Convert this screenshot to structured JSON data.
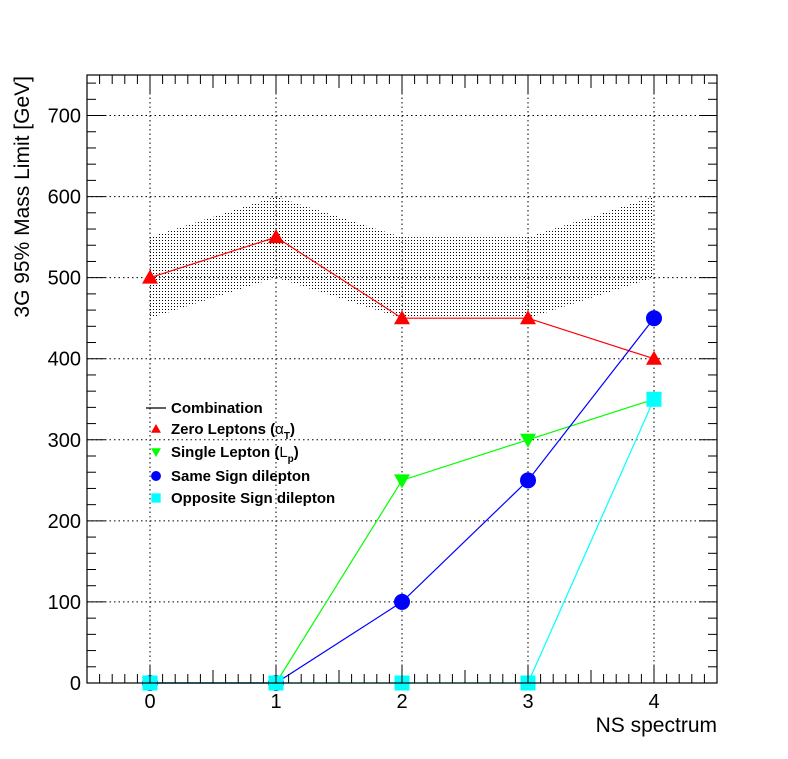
{
  "chart_data": {
    "type": "line",
    "title": "",
    "xlabel": "NS spectrum",
    "ylabel": "3G 95% Mass Limit [GeV]",
    "xlim": [
      -0.5,
      4.5
    ],
    "ylim": [
      0,
      750
    ],
    "x_ticks": [
      "0",
      "1",
      "2",
      "3",
      "4"
    ],
    "y_ticks": [
      "0",
      "100",
      "200",
      "300",
      "400",
      "500",
      "600",
      "700"
    ],
    "grid": true,
    "legend_position": "center-left",
    "band": {
      "name": "Combination",
      "x": [
        0,
        1,
        2,
        3,
        4
      ],
      "low": [
        450,
        500,
        450,
        450,
        500
      ],
      "high": [
        550,
        600,
        550,
        550,
        600
      ],
      "color": "#000000"
    },
    "series": [
      {
        "name": "Combination",
        "marker": "line",
        "color": "#000000",
        "x": [],
        "values": []
      },
      {
        "name": "Zero Leptons",
        "symbol": "α",
        "subscript": "T",
        "marker": "triangle-up",
        "color": "#ff0000",
        "x": [
          0,
          1,
          2,
          3,
          4
        ],
        "values": [
          500,
          550,
          450,
          450,
          400
        ]
      },
      {
        "name": "Single Lepton",
        "symbol": "L",
        "subscript": "p",
        "marker": "triangle-down",
        "color": "#00ff00",
        "x": [
          0,
          1,
          2,
          3,
          4
        ],
        "values": [
          0,
          0,
          250,
          300,
          350
        ]
      },
      {
        "name": "Same Sign dilepton",
        "marker": "circle",
        "color": "#0000ff",
        "x": [
          0,
          1,
          2,
          3,
          4
        ],
        "values": [
          0,
          0,
          100,
          250,
          450
        ]
      },
      {
        "name": "Opposite Sign dilepton",
        "marker": "square",
        "color": "#00ffff",
        "x": [
          0,
          1,
          2,
          3,
          4
        ],
        "values": [
          0,
          0,
          0,
          0,
          350
        ]
      }
    ]
  }
}
